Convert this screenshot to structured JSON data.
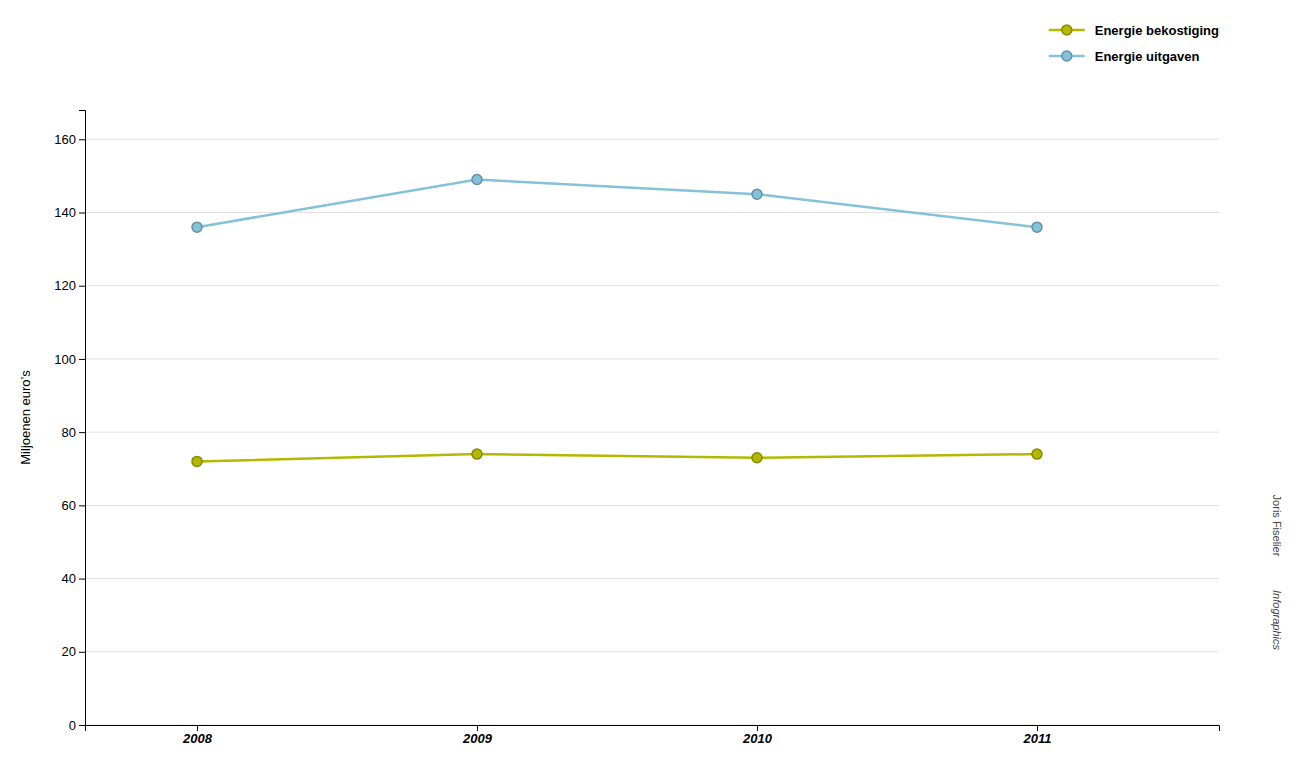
{
  "chart_data": {
    "type": "line",
    "x": [
      2008,
      2009,
      2010,
      2011
    ],
    "xlim": [
      2007.6,
      2011.65
    ],
    "xticks": [
      2008,
      2009,
      2010,
      2011
    ],
    "y_label": "Miljoenen euro’s",
    "ylim": [
      0,
      168
    ],
    "yticks": [
      0,
      20,
      40,
      60,
      80,
      100,
      120,
      140,
      160
    ],
    "grid": true,
    "legend": "upper right",
    "marker": "circle",
    "series": [
      {
        "name": "Energie bekostiging",
        "color": "#b5b800",
        "values": [
          72,
          74,
          73,
          74
        ]
      },
      {
        "name": "Energie uitgaven",
        "color": "#85c1d8",
        "values": [
          136,
          149,
          145,
          136
        ]
      }
    ],
    "annotations": [
      "Joris Fiselier ",
      "Infographics"
    ]
  }
}
